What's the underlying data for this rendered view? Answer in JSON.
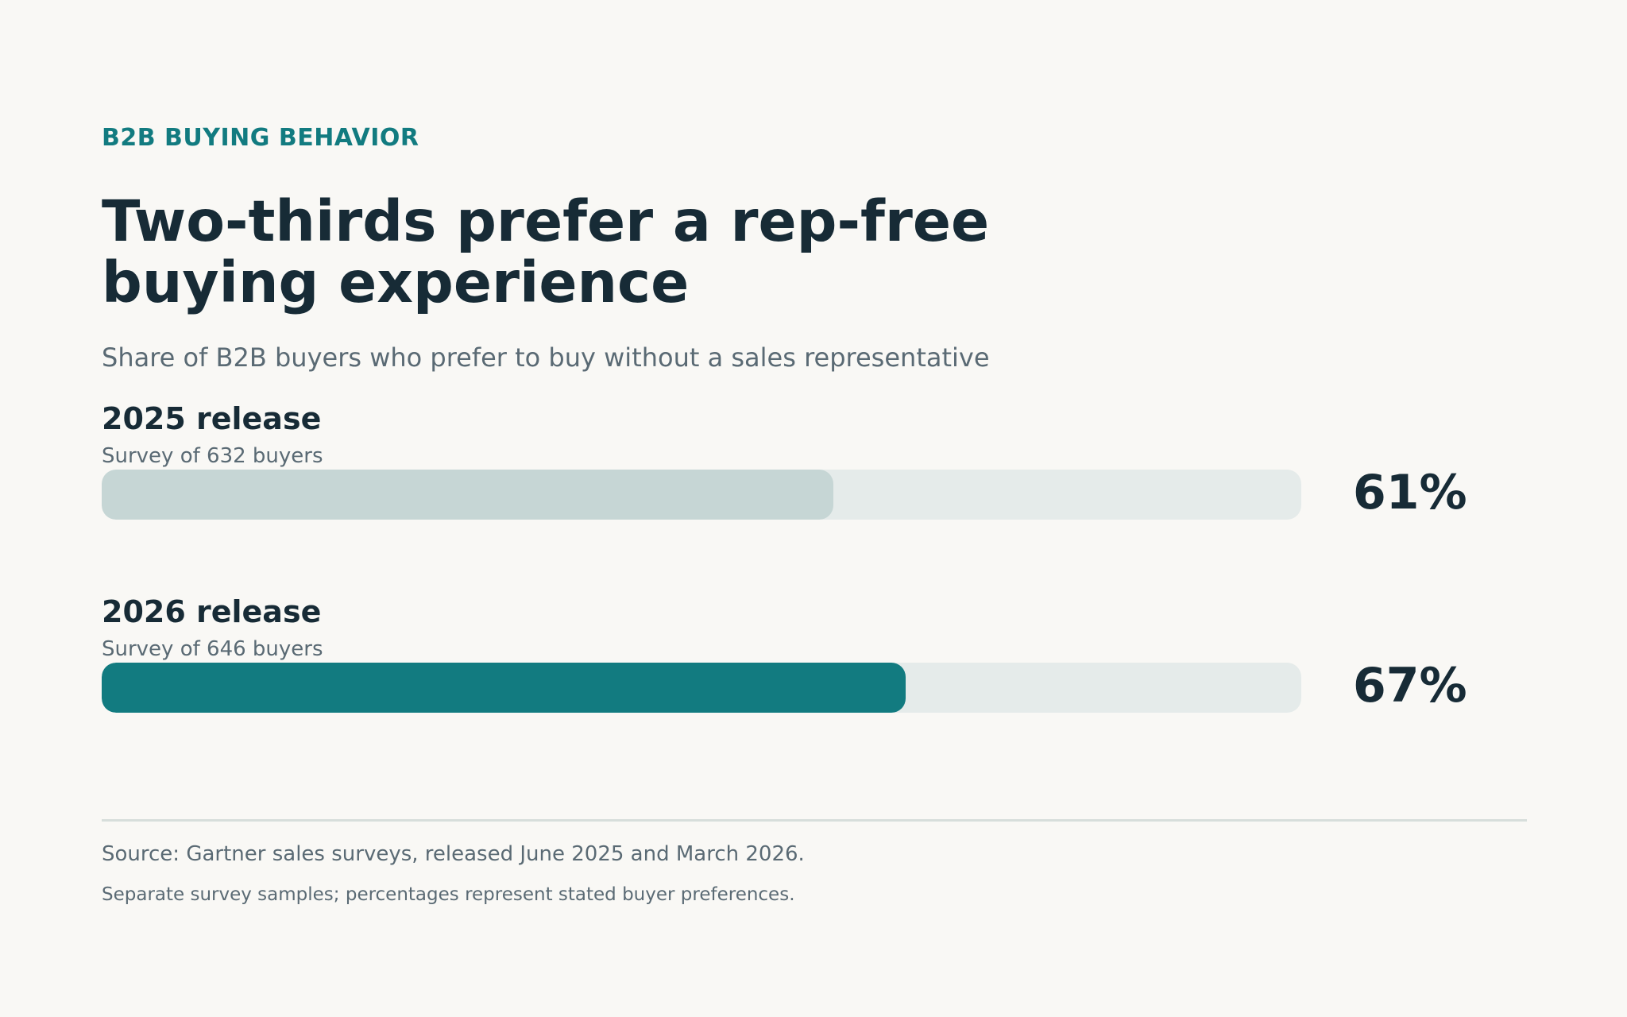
{
  "eyebrow": "B2B BUYING BEHAVIOR",
  "title": "Two-thirds prefer a rep-free buying experience",
  "subtitle": "Share of B2B buyers who prefer to buy without a sales representative",
  "colors": {
    "accent": "#127b80",
    "muted_bar": "#c6d6d5",
    "track": "#e5ebea",
    "text_dark": "#172b36",
    "text_muted": "#5a6a74",
    "background": "#f9f8f5"
  },
  "chart_data": {
    "type": "bar",
    "orientation": "horizontal",
    "title": "Two-thirds prefer a rep-free buying experience",
    "subtitle": "Share of B2B buyers who prefer to buy without a sales representative",
    "categories": [
      "2025 release",
      "2026 release"
    ],
    "category_notes": [
      "Survey of 632 buyers",
      "Survey of 646 buyers"
    ],
    "values": [
      61,
      67
    ],
    "value_labels": [
      "61%",
      "67%"
    ],
    "unit": "%",
    "xlim": [
      0,
      100
    ],
    "bar_colors": [
      "#c6d6d5",
      "#127b80"
    ],
    "grid": false,
    "legend": "none"
  },
  "footer": {
    "source": "Source: Gartner sales surveys, released June 2025 and March 2026.",
    "note": "Separate survey samples; percentages represent stated buyer preferences."
  }
}
